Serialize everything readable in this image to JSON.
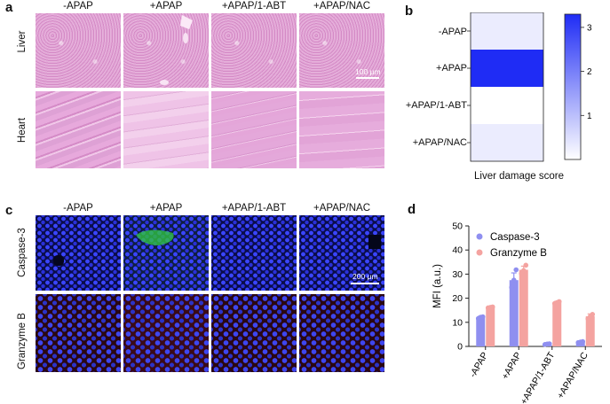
{
  "panels": {
    "a": {
      "label": "a",
      "columns": [
        "-APAP",
        "+APAP",
        "+APAP/1-ABT",
        "+APAP/NAC"
      ],
      "rows": [
        "Liver",
        "Heart"
      ],
      "scale_bar": "100 μm"
    },
    "b": {
      "label": "b",
      "xlabel": "Liver damage score"
    },
    "c": {
      "label": "c",
      "columns": [
        "-APAP",
        "+APAP",
        "+APAP/1-ABT",
        "+APAP/NAC"
      ],
      "rows": [
        "Caspase-3",
        "Granzyme B"
      ],
      "scale_bar": "200 μm"
    },
    "d": {
      "label": "d"
    }
  },
  "chart_data": [
    {
      "type": "heatmap",
      "rows": [
        "-APAP",
        "+APAP",
        "+APAP/1-ABT",
        "+APAP/NAC"
      ],
      "values": [
        0.3,
        3.3,
        0,
        0.3
      ],
      "xlabel": "Liver damage score",
      "colorbar": {
        "ticks": [
          1,
          2,
          3
        ],
        "range": [
          0,
          3.3
        ],
        "low_color": "#ffffff",
        "high_color": "#1f2cf5"
      }
    },
    {
      "type": "bar",
      "categories": [
        "-APAP",
        "+APAP",
        "+APAP/1-ABT",
        "+APAP/NAC"
      ],
      "series": [
        {
          "name": "Caspase-3",
          "values": [
            12,
            27.5,
            1,
            1.8
          ],
          "errors": [
            0.5,
            3,
            0.2,
            0.2
          ],
          "points": [
            [
              11.6,
              12.1,
              12.3
            ],
            [
              24.5,
              27.5,
              31.8
            ],
            [
              0.8,
              1.0,
              1.1
            ],
            [
              1.6,
              1.8,
              2.0
            ]
          ],
          "color": "#8f8ff0"
        },
        {
          "name": "Granzyme B",
          "values": [
            16.2,
            31.8,
            18.2,
            12.5
          ],
          "errors": [
            0.3,
            1.5,
            0.5,
            1
          ],
          "points": [
            [
              16.0,
              16.2,
              16.4
            ],
            [
              30.2,
              31.5,
              33.7
            ],
            [
              17.8,
              18.2,
              18.6
            ],
            [
              11.5,
              12.4,
              13.3
            ]
          ],
          "color": "#f4a3a0"
        }
      ],
      "ylabel": "MFI (a.u.)",
      "ylim": [
        0,
        50
      ],
      "yticks": [
        0,
        10,
        20,
        30,
        40,
        50
      ],
      "legend": "top-left"
    }
  ]
}
